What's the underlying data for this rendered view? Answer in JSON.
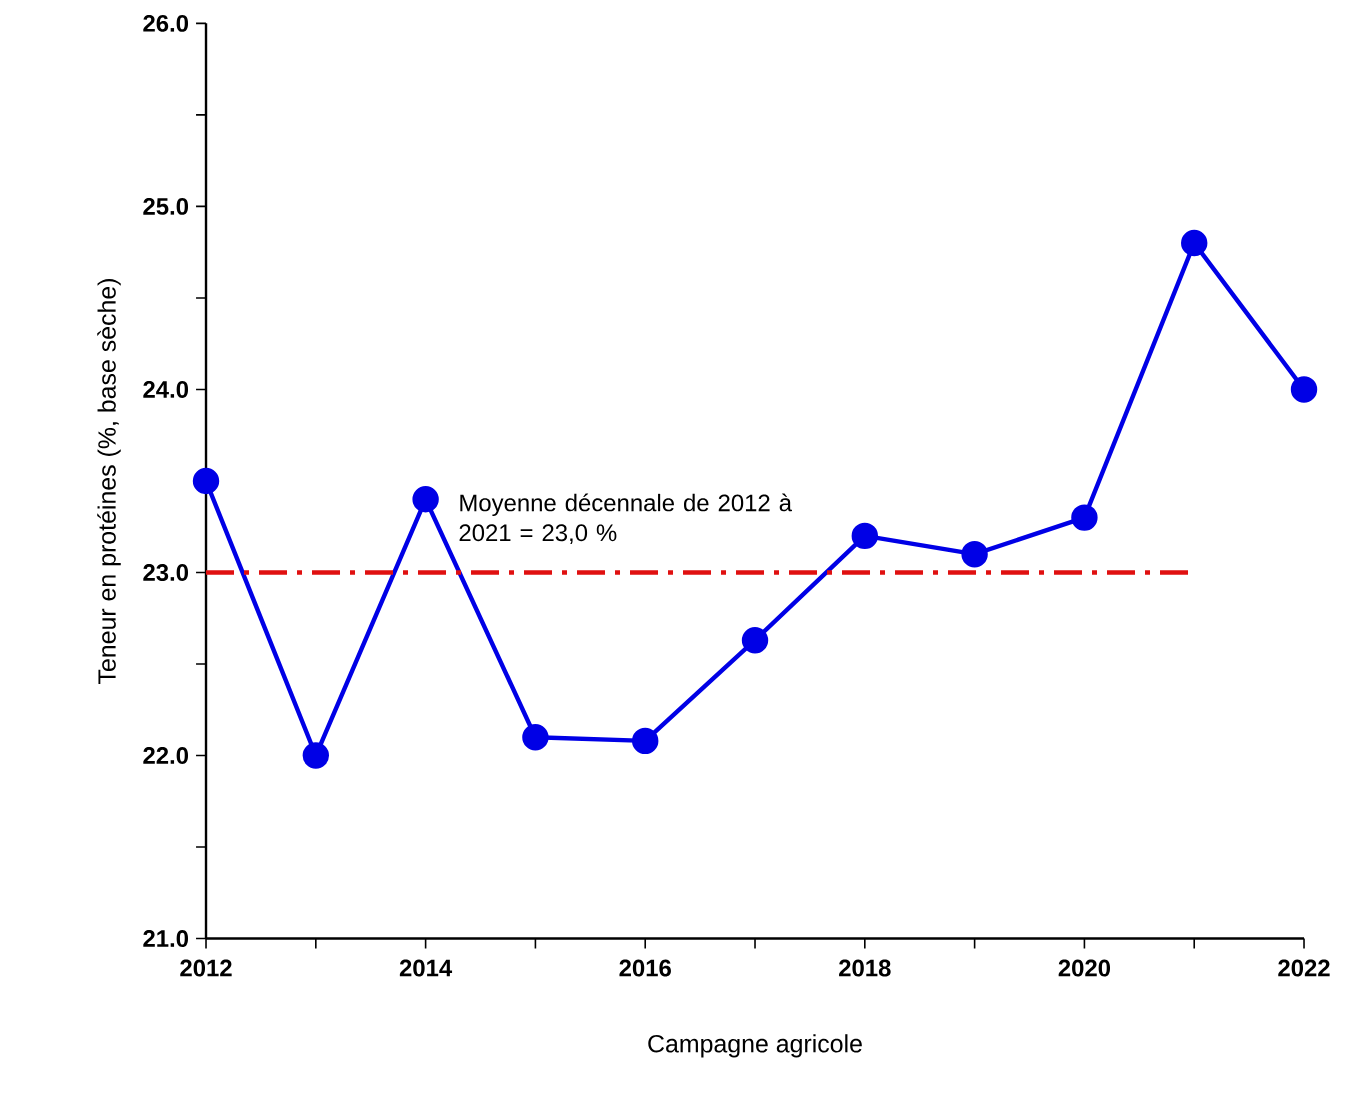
{
  "chart_data": {
    "type": "line",
    "xlabel": "Campagne agricole",
    "ylabel": "Teneur en protéines (%, base sèche)",
    "x": [
      2012,
      2013,
      2014,
      2015,
      2016,
      2017,
      2018,
      2019,
      2020,
      2021,
      2022
    ],
    "series": [
      {
        "color": "#0000e6",
        "values": [
          23.5,
          22.0,
          23.4,
          22.1,
          22.08,
          22.63,
          23.2,
          23.1,
          23.3,
          24.8,
          24.0
        ],
        "marker": "circle",
        "line_style": "solid"
      },
      {
        "name": "Moyenne décennale de 2012 à 2021 = 23,0 %",
        "color": "#e01010",
        "x": [
          2012,
          2021
        ],
        "values": [
          23.0,
          23.0
        ],
        "marker": "none",
        "line_style": "dashdot"
      }
    ],
    "xlim": [
      2012,
      2022
    ],
    "ylim": [
      21,
      26
    ],
    "xticks": [
      2012,
      2014,
      2016,
      2018,
      2020,
      2022
    ],
    "yticks": [
      {
        "value": 21,
        "label": "21.0"
      },
      {
        "value": 22,
        "label": "22.0"
      },
      {
        "value": 23,
        "label": "23.0"
      },
      {
        "value": 24,
        "label": "24.0"
      },
      {
        "value": 25,
        "label": "25.0"
      },
      {
        "value": 26,
        "label": "26.0"
      }
    ],
    "grid": false,
    "legend": false
  }
}
